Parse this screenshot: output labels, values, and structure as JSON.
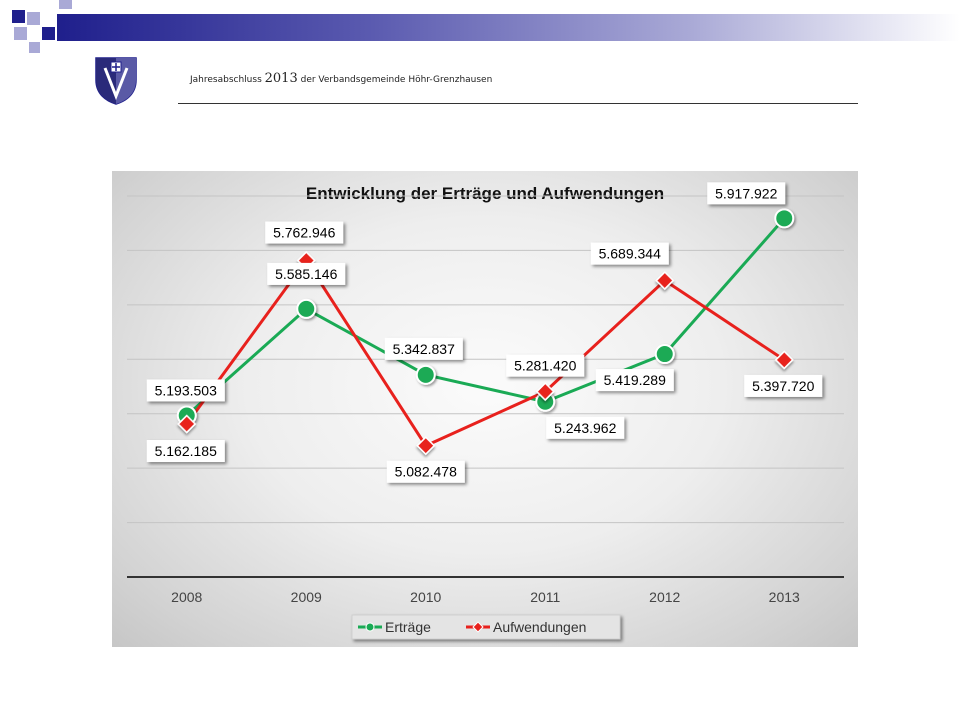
{
  "header": {
    "prefix": "Jahresabschluss",
    "year": "2013",
    "suffix": "der Verbandsgemeinde Höhr-Grenzhausen"
  },
  "logo": {
    "icon": "coat-of-arms-icon"
  },
  "colors": {
    "accent_blue": "#1f1f8c",
    "decor_light": "#a9a9d6",
    "ertraege": "#1aaa55",
    "aufwendungen": "#e8211d"
  },
  "chart_data": {
    "type": "line",
    "title": "Entwicklung der Erträge und Aufwendungen",
    "categories": [
      "2008",
      "2009",
      "2010",
      "2011",
      "2012",
      "2013"
    ],
    "series": [
      {
        "name": "Erträge",
        "marker": "circle",
        "color": "#1aaa55",
        "values": [
          5193503,
          5585146,
          5342837,
          5243962,
          5419289,
          5917922
        ],
        "labels": [
          "5.193.503",
          "5.585.146",
          "5.342.837",
          "5.243.962",
          "5.419.289",
          "5.917.922"
        ]
      },
      {
        "name": "Aufwendungen",
        "marker": "diamond",
        "color": "#e8211d",
        "values": [
          5162185,
          5762946,
          5082478,
          5281420,
          5689344,
          5397720
        ],
        "labels": [
          "5.162.185",
          "5.762.946",
          "5.082.478",
          "5.281.420",
          "5.689.344",
          "5.397.720"
        ]
      }
    ],
    "ylim": [
      4600000,
      6000000
    ],
    "grid": true,
    "legend": "bottom"
  }
}
